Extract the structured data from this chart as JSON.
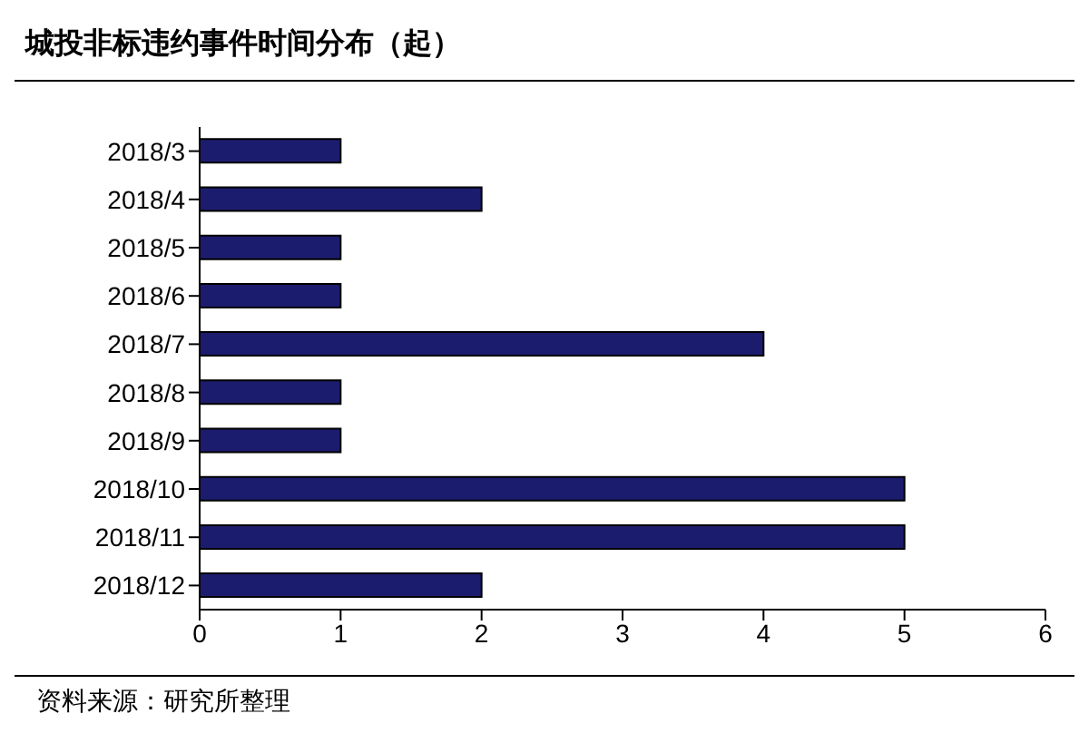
{
  "chart_data": {
    "type": "bar",
    "orientation": "horizontal",
    "title": "城投非标违约事件时间分布（起）",
    "categories": [
      "2018/3",
      "2018/4",
      "2018/5",
      "2018/6",
      "2018/7",
      "2018/8",
      "2018/9",
      "2018/10",
      "2018/11",
      "2018/12"
    ],
    "values": [
      1,
      2,
      1,
      1,
      4,
      1,
      1,
      5,
      5,
      2
    ],
    "color": "#1c1c6e",
    "xlim": [
      0,
      6
    ],
    "xticks": [
      0,
      1,
      2,
      3,
      4,
      5,
      6
    ],
    "grid": false,
    "legend": false,
    "annotations": [
      "资料来源：研究所整理"
    ]
  }
}
